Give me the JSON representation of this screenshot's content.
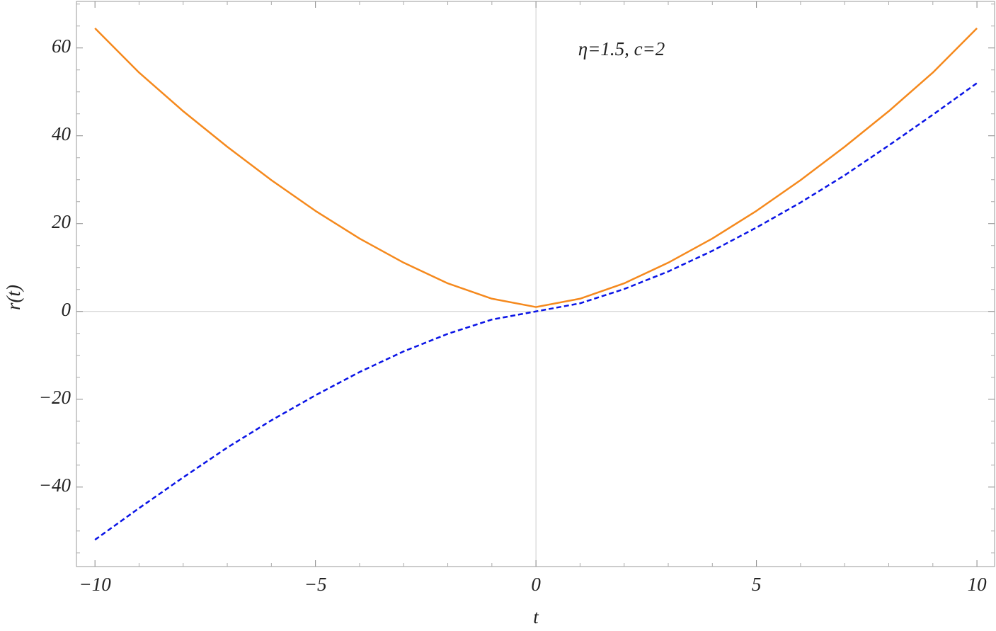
{
  "chart_data": {
    "type": "line",
    "annotation": "η=1.5,  c=2",
    "x_label": "t",
    "y_label": "r(t)",
    "x": [
      -10,
      -9,
      -8,
      -7,
      -6,
      -5,
      -4,
      -3,
      -2,
      -1,
      0,
      1,
      2,
      3,
      4,
      5,
      6,
      7,
      8,
      9,
      10
    ],
    "series": [
      {
        "color": "#f5891d",
        "style": "solid",
        "values": [
          64.5,
          54.4,
          45.6,
          37.5,
          29.9,
          22.9,
          16.6,
          11.1,
          6.4,
          2.9,
          1,
          2.9,
          6.4,
          11.1,
          16.6,
          22.9,
          29.9,
          37.5,
          45.6,
          54.4,
          64.5
        ]
      },
      {
        "color": "#0a14e6",
        "style": "dashed",
        "values": [
          -52,
          -44.8,
          -37.8,
          -31,
          -24.8,
          -19.1,
          -13.8,
          -9.1,
          -5.1,
          -1.85,
          0,
          1.85,
          5.1,
          9.1,
          13.8,
          19.1,
          24.8,
          31,
          37.8,
          44.8,
          52
        ]
      }
    ],
    "xlim": [
      -10.42,
      10.4
    ],
    "ylim": [
      -58.1,
      70.6
    ],
    "xticks": [
      {
        "value": -10,
        "label": "−10"
      },
      {
        "value": -5,
        "label": "−5"
      },
      0,
      5,
      10
    ],
    "yticks": [
      {
        "value": -40,
        "label": "−40"
      },
      {
        "value": -20,
        "label": "−20"
      },
      0,
      20,
      40,
      60
    ],
    "grid": false
  }
}
